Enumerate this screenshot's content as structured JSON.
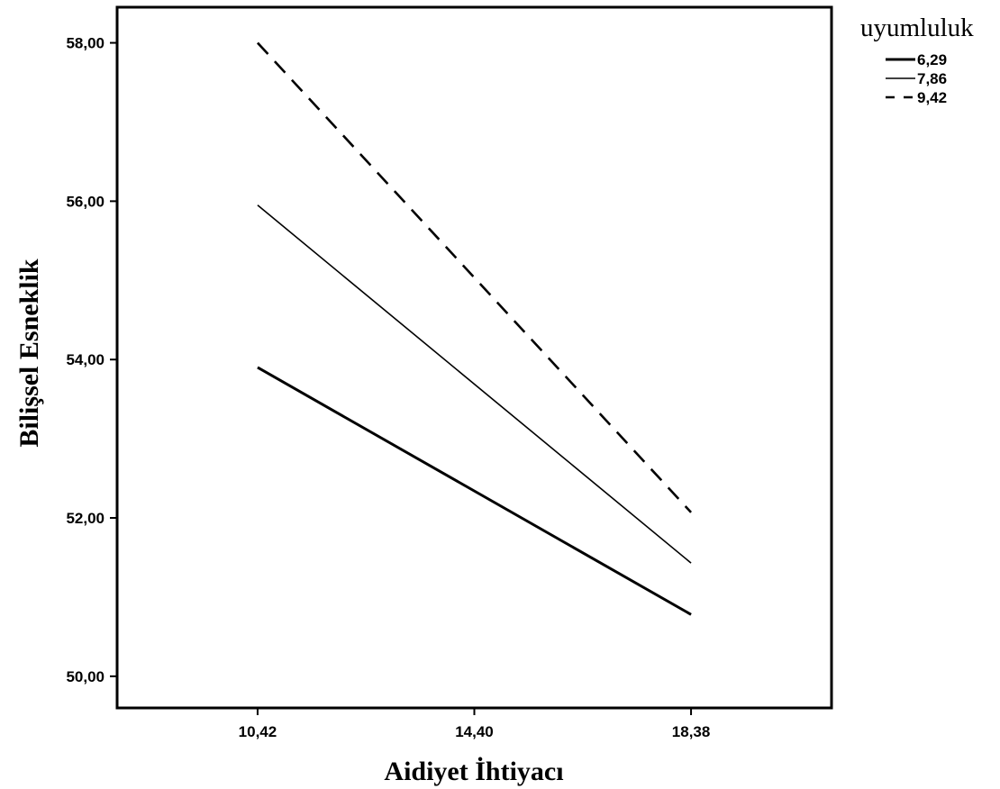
{
  "chart_data": {
    "type": "line",
    "xlabel": "Aidiyet İhtiyacı",
    "ylabel": "Bilişsel Esneklik",
    "x": [
      10.42,
      18.38
    ],
    "x_ticks": [
      "10,42",
      "14,40",
      "18,38"
    ],
    "x_tick_values": [
      10.42,
      14.4,
      18.38
    ],
    "xlim": [
      7.84,
      20.96
    ],
    "ylim": [
      49.6,
      58.45
    ],
    "y_ticks": [
      "50,00",
      "52,00",
      "54,00",
      "56,00",
      "58,00"
    ],
    "y_tick_values": [
      50,
      52,
      54,
      56,
      58
    ],
    "grid": false,
    "legend": {
      "title": "uyumluluk",
      "position": "top-right"
    },
    "series": [
      {
        "name": "6,29",
        "values": [
          53.9,
          50.78
        ],
        "color": "#000000",
        "style": "solid"
      },
      {
        "name": "7,86",
        "values": [
          55.95,
          51.43
        ],
        "color": "#000000",
        "style": "thin-solid"
      },
      {
        "name": "9,42",
        "values": [
          58.0,
          52.07
        ],
        "color": "#000000",
        "style": "dashed"
      }
    ]
  }
}
